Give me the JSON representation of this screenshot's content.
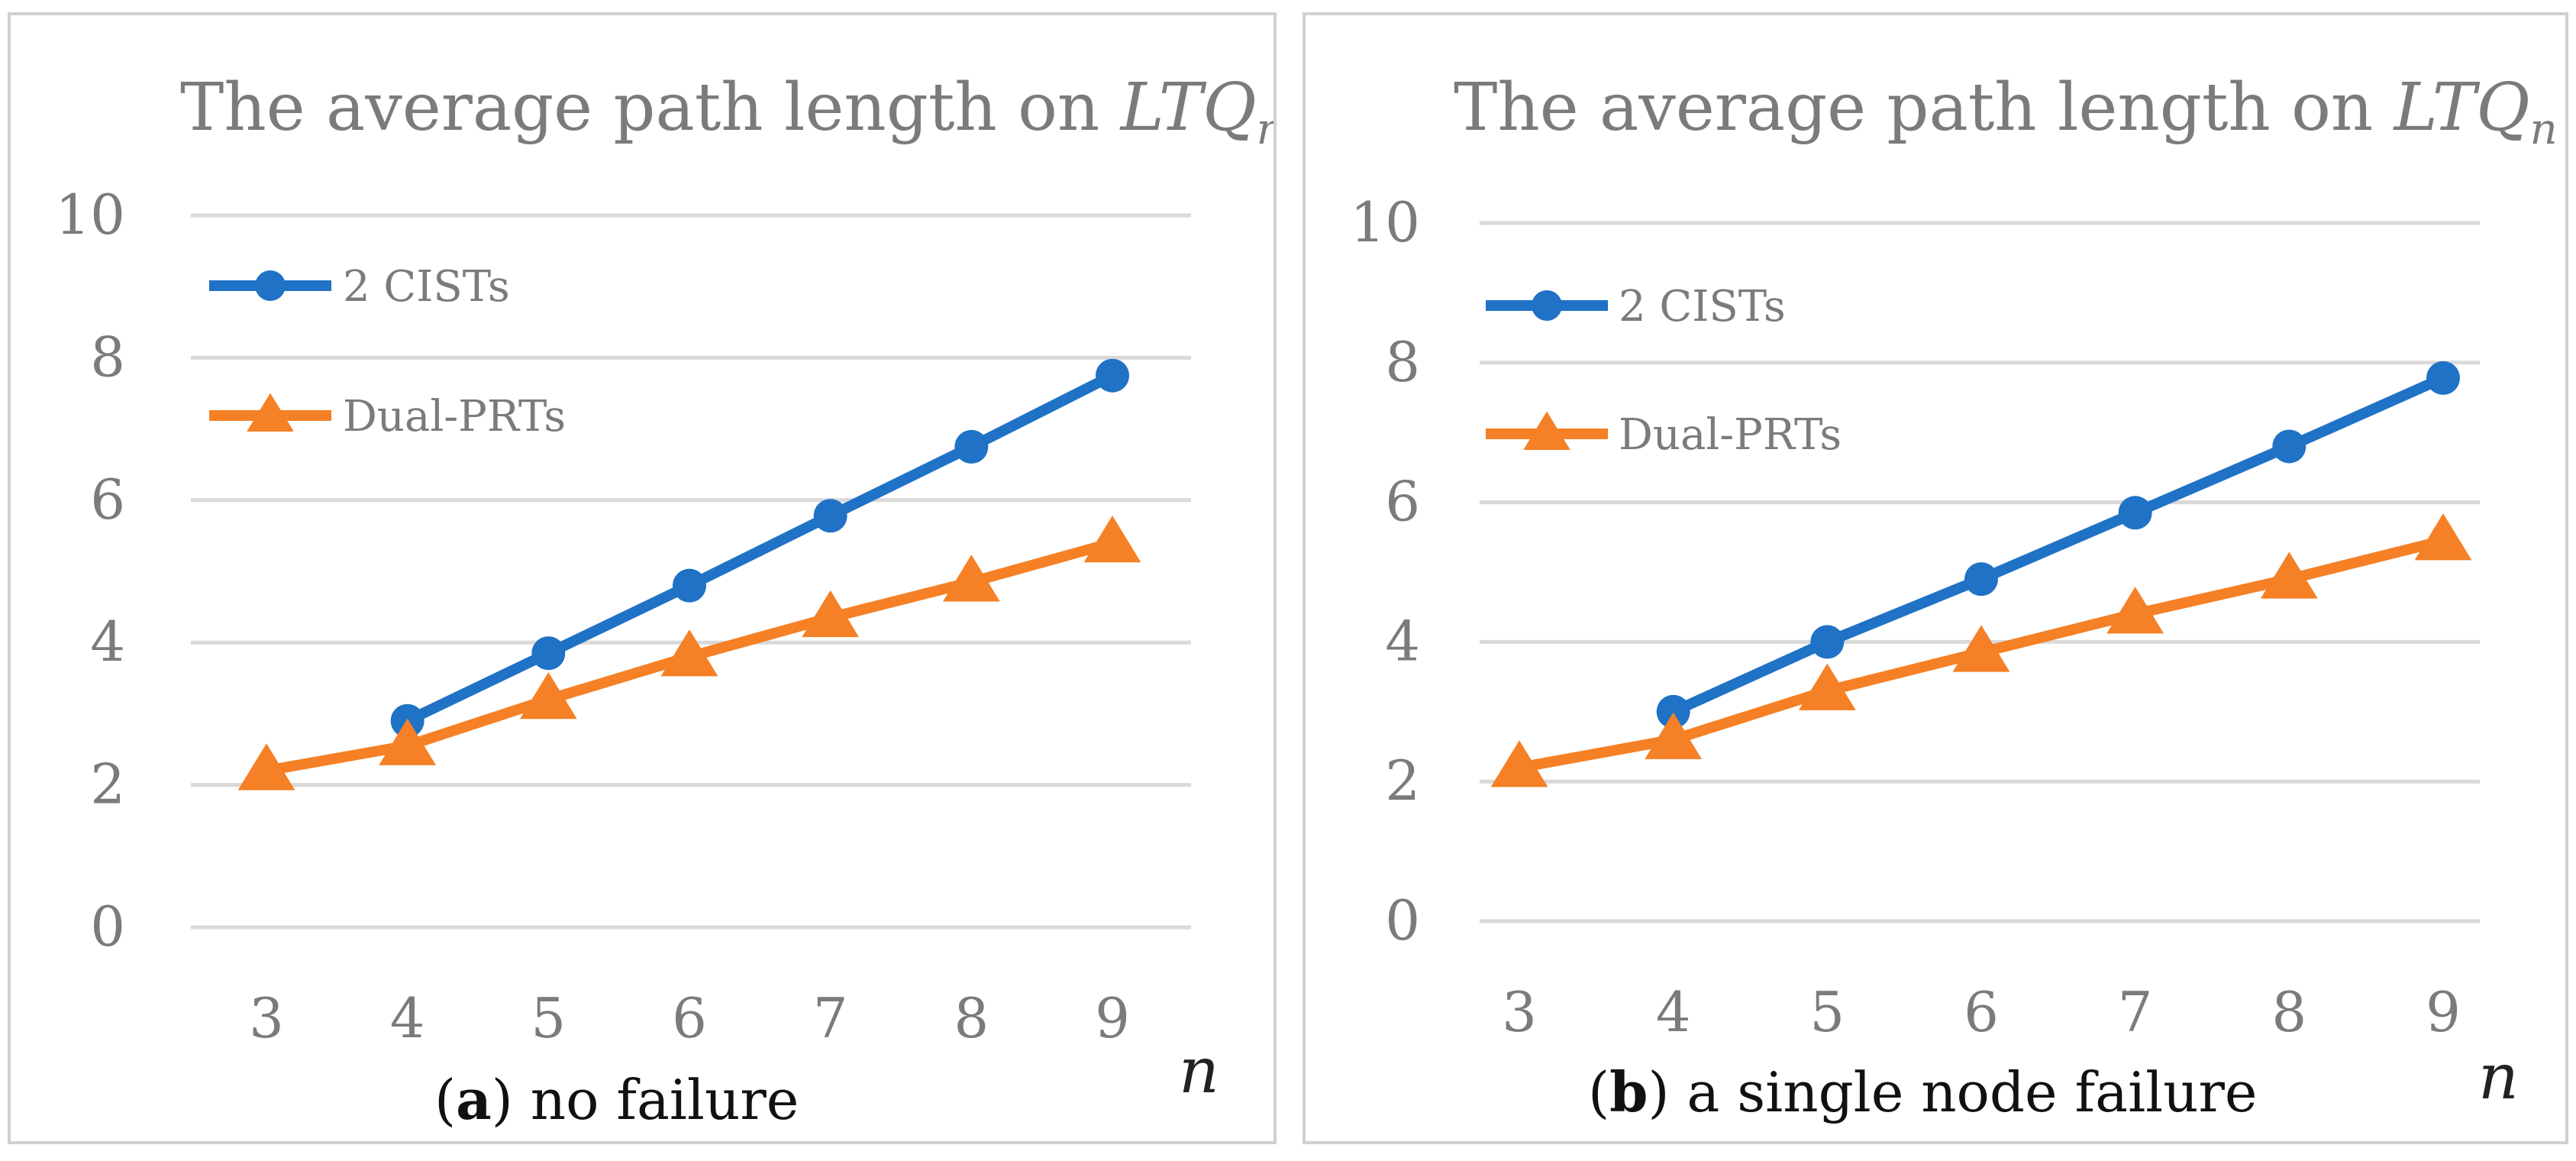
{
  "colors": {
    "cists": "#1f72c6",
    "prts": "#f58025",
    "grid": "#d9d9d9",
    "text": "#7b7b7b"
  },
  "chart_data": [
    {
      "type": "line",
      "title": "The average path length on",
      "title_math": {
        "base": "LTQ",
        "sub": "n"
      },
      "xlabel": "n",
      "caption": {
        "letter": "a",
        "open": "(",
        "close": ")",
        "text": " no failure"
      },
      "categories": [
        "3",
        "4",
        "5",
        "6",
        "7",
        "8",
        "9"
      ],
      "y_ticks": [
        "0",
        "2",
        "4",
        "6",
        "8",
        "10"
      ],
      "ylim": [
        0,
        10
      ],
      "grid": true,
      "legend_position": "top-left",
      "series": [
        {
          "name": "2 CISTs",
          "marker": "circle",
          "color": "#1f72c6",
          "values": [
            null,
            2.9,
            3.85,
            4.8,
            5.78,
            6.75,
            7.75
          ]
        },
        {
          "name": "Dual-PRTs",
          "marker": "triangle",
          "color": "#f58025",
          "values": [
            2.2,
            2.55,
            3.2,
            3.8,
            4.35,
            4.85,
            5.4
          ]
        }
      ]
    },
    {
      "type": "line",
      "title": "The average path length on",
      "title_math": {
        "base": "LTQ",
        "sub": "n"
      },
      "xlabel": "n",
      "caption": {
        "letter": "b",
        "open": "(",
        "close": ")",
        "text": " a single node failure"
      },
      "categories": [
        "3",
        "4",
        "5",
        "6",
        "7",
        "8",
        "9"
      ],
      "y_ticks": [
        "0",
        "2",
        "4",
        "6",
        "8",
        "10"
      ],
      "ylim": [
        0,
        10
      ],
      "grid": true,
      "legend_position": "top-left",
      "series": [
        {
          "name": "2 CISTs",
          "marker": "circle",
          "color": "#1f72c6",
          "values": [
            null,
            3.0,
            4.0,
            4.9,
            5.85,
            6.8,
            7.78
          ]
        },
        {
          "name": "Dual-PRTs",
          "marker": "triangle",
          "color": "#f58025",
          "values": [
            2.2,
            2.6,
            3.3,
            3.85,
            4.4,
            4.9,
            5.45
          ]
        }
      ]
    }
  ]
}
